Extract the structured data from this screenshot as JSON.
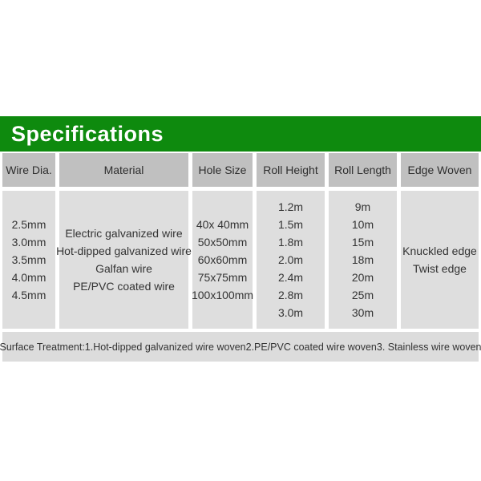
{
  "banner": {
    "title": "Specifications"
  },
  "table": {
    "columns": [
      {
        "header": "Wire Dia.",
        "values": [
          "2.5mm",
          "3.0mm",
          "3.5mm",
          "4.0mm",
          "4.5mm"
        ]
      },
      {
        "header": "Material",
        "values": [
          "Electric galvanized wire",
          "Hot-dipped galvanized wire",
          "Galfan wire",
          "PE/PVC coated wire"
        ]
      },
      {
        "header": "Hole Size",
        "values": [
          "40x 40mm",
          "50x50mm",
          "60x60mm",
          "75x75mm",
          "100x100mm"
        ]
      },
      {
        "header": "Roll Height",
        "values": [
          "1.2m",
          "1.5m",
          "1.8m",
          "2.0m",
          "2.4m",
          "2.8m",
          "3.0m"
        ]
      },
      {
        "header": "Roll Length",
        "values": [
          "9m",
          "10m",
          "15m",
          "18m",
          "20m",
          "25m",
          "30m"
        ]
      },
      {
        "header": "Edge Woven",
        "values": [
          "Knuckled edge",
          "Twist edge"
        ]
      }
    ],
    "footer": "Surface Treatment:1.Hot-dipped galvanized wire woven2.PE/PVC coated wire woven3. Stainless wire woven"
  },
  "colors": {
    "banner_green": "#0e8a0e",
    "header_bg": "#c0c0c0",
    "cell_bg": "#dedede",
    "footer_bg": "#dcdcdc",
    "text": "#333333",
    "banner_text": "#ffffff"
  }
}
